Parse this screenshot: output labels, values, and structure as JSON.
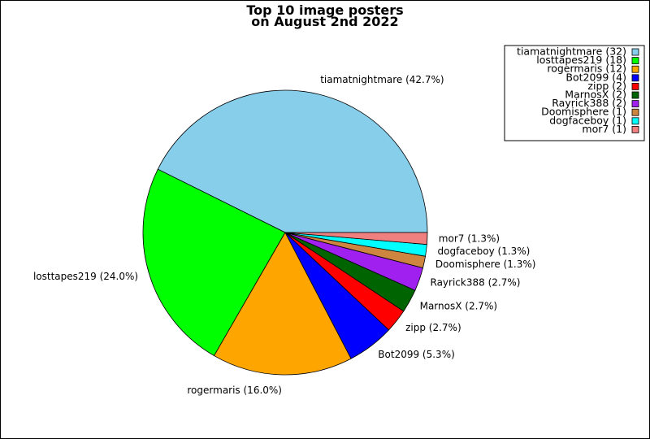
{
  "chart_data": {
    "type": "pie",
    "title_lines": [
      "Top 10 image posters",
      "on August 2nd 2022"
    ],
    "slices": [
      {
        "name": "tiamatnightmare",
        "value": 32,
        "label": "tiamatnightmare (42.7%)",
        "legend": "tiamatnightmare (32)",
        "color": "#87ceeb"
      },
      {
        "name": "losttapes219",
        "value": 18,
        "label": "losttapes219 (24.0%)",
        "legend": "losttapes219 (18)",
        "color": "#00ff00"
      },
      {
        "name": "rogermaris",
        "value": 12,
        "label": "rogermaris (16.0%)",
        "legend": "rogermaris (12)",
        "color": "#ffa500"
      },
      {
        "name": "Bot2099",
        "value": 4,
        "label": "Bot2099 (5.3%)",
        "legend": "Bot2099 (4)",
        "color": "#0000ff"
      },
      {
        "name": "zipp",
        "value": 2,
        "label": "zipp (2.7%)",
        "legend": "zipp (2)",
        "color": "#ff0000"
      },
      {
        "name": "MarnosX",
        "value": 2,
        "label": "MarnosX (2.7%)",
        "legend": "MarnosX (2)",
        "color": "#006400"
      },
      {
        "name": "Rayrick388",
        "value": 2,
        "label": "Rayrick388 (2.7%)",
        "legend": "Rayrick388 (2)",
        "color": "#a020f0"
      },
      {
        "name": "Doomisphere",
        "value": 1,
        "label": "Doomisphere (1.3%)",
        "legend": "Doomisphere (1)",
        "color": "#cd853f"
      },
      {
        "name": "dogfaceboy",
        "value": 1,
        "label": "dogfaceboy (1.3%)",
        "legend": "dogfaceboy (1)",
        "color": "#00ffff"
      },
      {
        "name": "mor7",
        "value": 1,
        "label": "mor7 (1.3%)",
        "legend": "mor7 (1)",
        "color": "#f08080"
      }
    ],
    "legend_position": "top-right",
    "start_angle": "0 (3 o'clock), counter-clockwise"
  }
}
